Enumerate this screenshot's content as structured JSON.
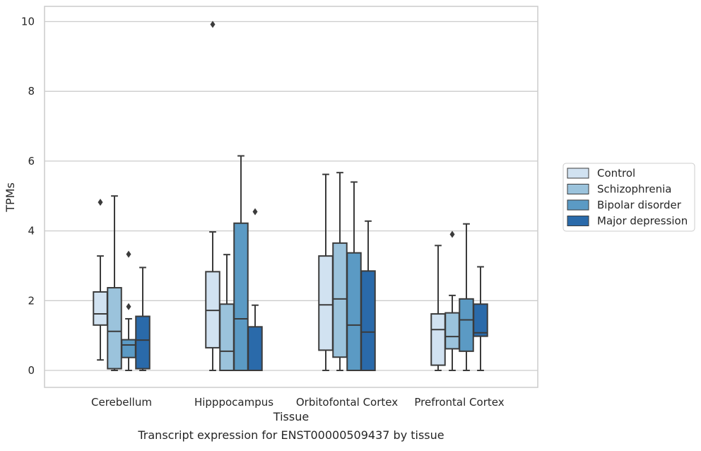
{
  "caption": "Transcript expression for ENST00000509437 by tissue",
  "chart_data": {
    "type": "box",
    "title": "",
    "xlabel": "Tissue",
    "ylabel": "TPMs",
    "ylim": [
      -0.45,
      10.45
    ],
    "yticks": [
      0,
      2,
      4,
      6,
      8,
      10
    ],
    "grid": "horizontal",
    "legend_position": "right",
    "categories": [
      "Cerebellum",
      "Hipppocampus",
      "Orbitofontal Cortex",
      "Prefrontal Cortex"
    ],
    "series": [
      {
        "name": "Control",
        "color": "#d1e2f1",
        "boxes": [
          {
            "whisker_low": 0.3,
            "q1": 1.3,
            "median": 1.62,
            "q3": 2.25,
            "whisker_high": 3.28,
            "outliers": [
              4.82
            ]
          },
          {
            "whisker_low": 0.0,
            "q1": 0.65,
            "median": 1.72,
            "q3": 2.83,
            "whisker_high": 3.97,
            "outliers": [
              9.92
            ]
          },
          {
            "whisker_low": 0.0,
            "q1": 0.58,
            "median": 1.88,
            "q3": 3.28,
            "whisker_high": 5.62,
            "outliers": []
          },
          {
            "whisker_low": 0.0,
            "q1": 0.15,
            "median": 1.17,
            "q3": 1.62,
            "whisker_high": 3.58,
            "outliers": []
          }
        ]
      },
      {
        "name": "Schizophrenia",
        "color": "#9bc3dc",
        "boxes": [
          {
            "whisker_low": 0.0,
            "q1": 0.05,
            "median": 1.12,
            "q3": 2.37,
            "whisker_high": 5.0,
            "outliers": []
          },
          {
            "whisker_low": 0.0,
            "q1": 0.0,
            "median": 0.55,
            "q3": 1.9,
            "whisker_high": 3.32,
            "outliers": []
          },
          {
            "whisker_low": 0.0,
            "q1": 0.38,
            "median": 2.05,
            "q3": 3.65,
            "whisker_high": 5.67,
            "outliers": []
          },
          {
            "whisker_low": 0.0,
            "q1": 0.62,
            "median": 0.97,
            "q3": 1.65,
            "whisker_high": 2.15,
            "outliers": [
              3.9
            ]
          }
        ]
      },
      {
        "name": "Bipolar disorder",
        "color": "#5b9ac4",
        "boxes": [
          {
            "whisker_low": 0.0,
            "q1": 0.37,
            "median": 0.73,
            "q3": 0.88,
            "whisker_high": 1.48,
            "outliers": [
              1.83,
              3.33
            ]
          },
          {
            "whisker_low": 0.0,
            "q1": 0.0,
            "median": 1.48,
            "q3": 4.22,
            "whisker_high": 6.15,
            "outliers": []
          },
          {
            "whisker_low": 0.0,
            "q1": 0.0,
            "median": 1.3,
            "q3": 3.37,
            "whisker_high": 5.4,
            "outliers": []
          },
          {
            "whisker_low": 0.0,
            "q1": 0.55,
            "median": 1.45,
            "q3": 2.05,
            "whisker_high": 4.2,
            "outliers": []
          }
        ]
      },
      {
        "name": "Major depression",
        "color": "#2a6aaa",
        "boxes": [
          {
            "whisker_low": 0.0,
            "q1": 0.05,
            "median": 0.87,
            "q3": 1.55,
            "whisker_high": 2.95,
            "outliers": []
          },
          {
            "whisker_low": 0.0,
            "q1": 0.0,
            "median": 0.0,
            "q3": 1.25,
            "whisker_high": 1.87,
            "outliers": [
              4.55
            ]
          },
          {
            "whisker_low": 0.0,
            "q1": 0.0,
            "median": 1.1,
            "q3": 2.85,
            "whisker_high": 4.28,
            "outliers": []
          },
          {
            "whisker_low": 0.0,
            "q1": 0.98,
            "median": 1.08,
            "q3": 1.9,
            "whisker_high": 2.97,
            "outliers": []
          }
        ]
      }
    ]
  }
}
